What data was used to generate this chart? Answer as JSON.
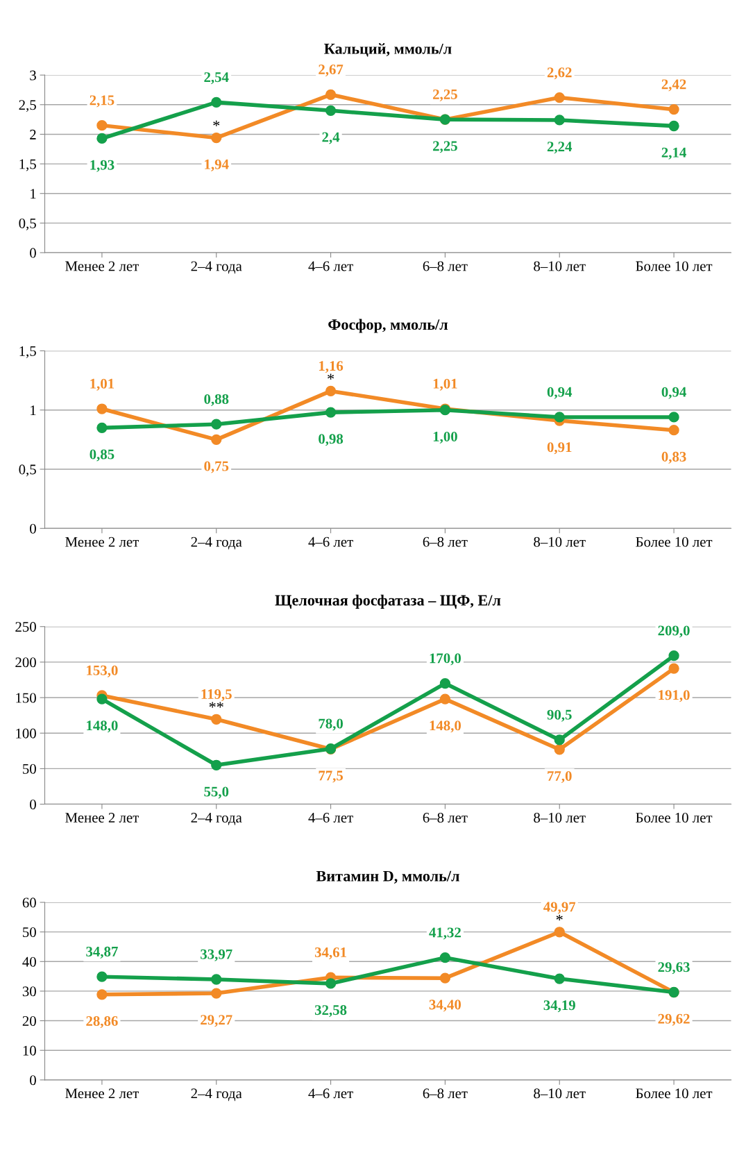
{
  "chart_data": [
    {
      "type": "line",
      "title": "Кальций, ммоль/л",
      "categories": [
        "Менее 2 лет",
        "2–4 года",
        "4–6 лет",
        "6–8 лет",
        "8–10 лет",
        "Более 10 лет"
      ],
      "series": [
        {
          "color": "#f28a26",
          "values": [
            2.15,
            1.94,
            2.67,
            2.25,
            2.62,
            2.42
          ],
          "value_labels": [
            "2,15",
            "1,94",
            "2,67",
            "2,25",
            "2,62",
            "2,42"
          ]
        },
        {
          "color": "#14a04b",
          "values": [
            1.93,
            2.54,
            2.4,
            2.25,
            2.24,
            2.14
          ],
          "value_labels": [
            "1,93",
            "2,54",
            "2,4",
            "2,25",
            "2,24",
            "2,14"
          ]
        }
      ],
      "ylim": [
        0,
        3
      ],
      "yticks": [
        0,
        {
          "value": 0.5,
          "label": "0,5"
        },
        1,
        {
          "value": 1.5,
          "label": "1,5"
        },
        2,
        {
          "value": 2.5,
          "label": "2,5"
        },
        3
      ],
      "grid": "y",
      "marker": "circle",
      "line_style": "solid",
      "annotations": [
        {
          "text": "*",
          "x": "2–4 года",
          "y": 1.94
        }
      ]
    },
    {
      "type": "line",
      "title": "Фосфор, ммоль/л",
      "categories": [
        "Менее 2 лет",
        "2–4 года",
        "4–6 лет",
        "6–8 лет",
        "8–10 лет",
        "Более 10 лет"
      ],
      "series": [
        {
          "color": "#f28a26",
          "values": [
            1.01,
            0.75,
            1.16,
            1.01,
            0.91,
            0.83
          ],
          "value_labels": [
            "1,01",
            "0,75",
            "1,16",
            "1,01",
            "0,91",
            "0,83"
          ]
        },
        {
          "color": "#14a04b",
          "values": [
            0.85,
            0.88,
            0.98,
            1.0,
            0.94,
            0.94
          ],
          "value_labels": [
            "0,85",
            "0,88",
            "0,98",
            "1,00",
            "0,94",
            "0,94"
          ]
        }
      ],
      "ylim": [
        0,
        1.5
      ],
      "yticks": [
        0,
        {
          "value": 0.5,
          "label": "0,5"
        },
        1,
        {
          "value": 1.5,
          "label": "1,5"
        }
      ],
      "grid": "y",
      "marker": "circle",
      "line_style": "solid",
      "annotations": [
        {
          "text": "*",
          "x": "4–6 лет",
          "y": 1.16
        }
      ]
    },
    {
      "type": "line",
      "title": "Щелочная фосфатаза – ЩФ, Е/л",
      "categories": [
        "Менее 2 лет",
        "2–4 года",
        "4–6 лет",
        "6–8 лет",
        "8–10 лет",
        "Более 10 лет"
      ],
      "series": [
        {
          "color": "#f28a26",
          "values": [
            153.0,
            119.5,
            77.5,
            148.0,
            77.0,
            191.0
          ],
          "value_labels": [
            "153,0",
            "119,5",
            "77,5",
            "148,0",
            "77,0",
            "191,0"
          ]
        },
        {
          "color": "#14a04b",
          "values": [
            148.0,
            55.0,
            78.0,
            170.0,
            90.5,
            209.0
          ],
          "value_labels": [
            "148,0",
            "55,0",
            "78,0",
            "170,0",
            "90,5",
            "209,0"
          ]
        }
      ],
      "ylim": [
        0,
        250
      ],
      "yticks": [
        0,
        50,
        100,
        150,
        200,
        250
      ],
      "grid": "y",
      "marker": "circle",
      "line_style": "solid",
      "annotations": [
        {
          "text": "**",
          "x": "2–4 года",
          "y": 119.5
        }
      ]
    },
    {
      "type": "line",
      "title": "Витамин D, ммоль/л",
      "categories": [
        "Менее 2 лет",
        "2–4 года",
        "4–6 лет",
        "6–8 лет",
        "8–10 лет",
        "Более 10 лет"
      ],
      "series": [
        {
          "color": "#f28a26",
          "values": [
            28.86,
            29.27,
            34.61,
            34.4,
            49.97,
            29.62
          ],
          "value_labels": [
            "28,86",
            "29,27",
            "34,61",
            "34,40",
            "49,97",
            "29,62"
          ]
        },
        {
          "color": "#14a04b",
          "values": [
            34.87,
            33.97,
            32.58,
            41.32,
            34.19,
            29.63
          ],
          "value_labels": [
            "34,87",
            "33,97",
            "32,58",
            "41,32",
            "34,19",
            "29,63"
          ]
        }
      ],
      "ylim": [
        0,
        60
      ],
      "yticks": [
        0,
        10,
        20,
        30,
        40,
        50,
        60
      ],
      "grid": "y",
      "marker": "circle",
      "line_style": "solid",
      "annotations": [
        {
          "text": "*",
          "x": "8–10 лет",
          "y": 49.97
        }
      ]
    }
  ]
}
